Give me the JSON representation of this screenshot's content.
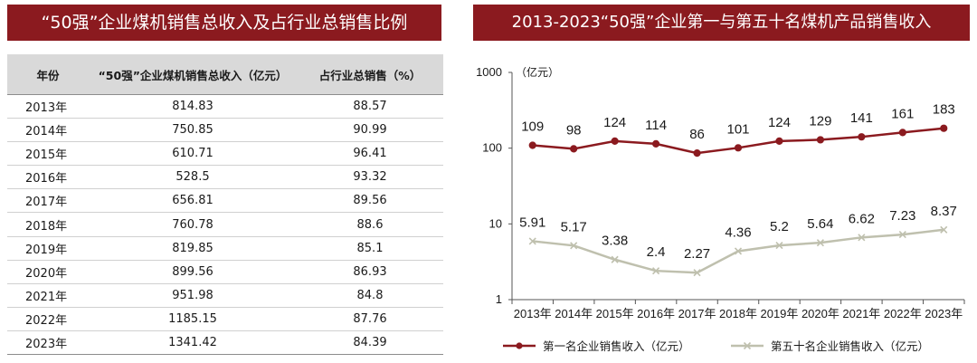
{
  "left_panel": {
    "title": "“50强”企业煤机销售总收入及占行业总销售比例",
    "headers": [
      "年份",
      "“50强”企业煤机销售总收入（亿元）",
      "占行业总销售（%）"
    ],
    "rows": [
      [
        "2013年",
        "814.83",
        "88.57"
      ],
      [
        "2014年",
        "750.85",
        "90.99"
      ],
      [
        "2015年",
        "610.71",
        "96.41"
      ],
      [
        "2016年",
        "528.5",
        "93.32"
      ],
      [
        "2017年",
        "656.81",
        "89.56"
      ],
      [
        "2018年",
        "760.78",
        "88.6"
      ],
      [
        "2019年",
        "819.85",
        "85.1"
      ],
      [
        "2020年",
        "899.56",
        "86.93"
      ],
      [
        "2021年",
        "951.98",
        "84.8"
      ],
      [
        "2022年",
        "1185.15",
        "87.76"
      ],
      [
        "2023年",
        "1341.42",
        "84.39"
      ]
    ]
  },
  "right_panel": {
    "title": "2013-2023“50强”企业第一与第五十名煤机产品销售收入"
  },
  "chart_data": {
    "type": "line",
    "title": "2013-2023“50强”企业第一与第五十名煤机产品销售收入",
    "ylabel": "（亿元）",
    "yscale": "log",
    "ylim": [
      1,
      1000
    ],
    "yticks": [
      "1",
      "10",
      "100",
      "1000"
    ],
    "x": [
      "2013年",
      "2014年",
      "2015年",
      "2016年",
      "2017年",
      "2018年",
      "2019年",
      "2020年",
      "2021年",
      "2022年",
      "2023年"
    ],
    "series": [
      {
        "name": "第一名企业销售收入（亿元）",
        "color": "#8b1a1f",
        "marker": "circle",
        "values": [
          109,
          98,
          124,
          114,
          86,
          101,
          124,
          129,
          141,
          161,
          183
        ],
        "labels": [
          "109",
          "98",
          "124",
          "114",
          "86",
          "101",
          "124",
          "129",
          "141",
          "161",
          "183"
        ]
      },
      {
        "name": "第五十名企业销售收入（亿元）",
        "color": "#bfc0ae",
        "marker": "x",
        "values": [
          5.91,
          5.17,
          3.38,
          2.4,
          2.27,
          4.36,
          5.2,
          5.64,
          6.62,
          7.23,
          8.37
        ],
        "labels": [
          "5.91",
          "5.17",
          "3.38",
          "2.4",
          "2.27",
          "4.36",
          "5.2",
          "5.64",
          "6.62",
          "7.23",
          "8.37"
        ]
      }
    ],
    "legend_position": "bottom"
  }
}
